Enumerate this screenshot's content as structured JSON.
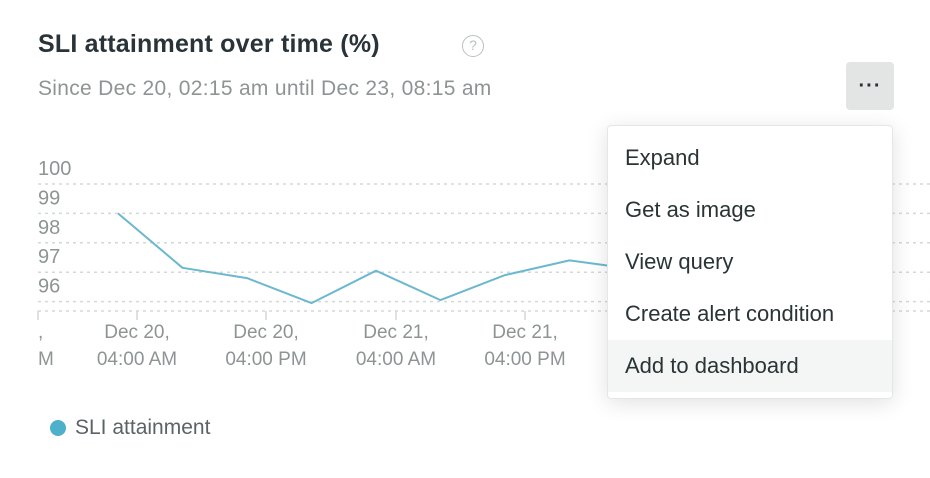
{
  "header": {
    "title": "SLI attainment over time (%)",
    "help_icon": "question-circle-icon",
    "subtitle": "Since Dec 20, 02:15 am until Dec 23, 08:15 am",
    "menu_button_label": "···"
  },
  "menu": {
    "items": [
      "Expand",
      "Get as image",
      "View query",
      "Create alert condition",
      "Add to dashboard"
    ],
    "active_index": 4
  },
  "legend": {
    "label": "SLI attainment",
    "color": "#4fb0cc"
  },
  "chart_data": {
    "type": "line",
    "y_ticks": [
      "100",
      "99",
      "98",
      "97",
      "96"
    ],
    "ylim": [
      95,
      100
    ],
    "x_ticks": [
      {
        "line1": ",",
        "line2": "M"
      },
      {
        "line1": "Dec 20,",
        "line2": "04:00 AM"
      },
      {
        "line1": "Dec 20,",
        "line2": "04:00 PM"
      },
      {
        "line1": "Dec 21,",
        "line2": "04:00 AM"
      },
      {
        "line1": "Dec 21,",
        "line2": "04:00 PM"
      }
    ],
    "series": [
      {
        "name": "SLI attainment",
        "color": "#6bb8cf",
        "x_hours": [
          12.0,
          18.0,
          24.0,
          30.0,
          36.0,
          42.0,
          48.0,
          54.0,
          57.0,
          58.0
        ],
        "values": [
          99.0,
          97.15,
          96.8,
          95.95,
          97.05,
          96.05,
          96.9,
          97.4,
          97.25,
          97.2
        ]
      }
    ],
    "grid": true,
    "legend_position": "bottom-left"
  }
}
